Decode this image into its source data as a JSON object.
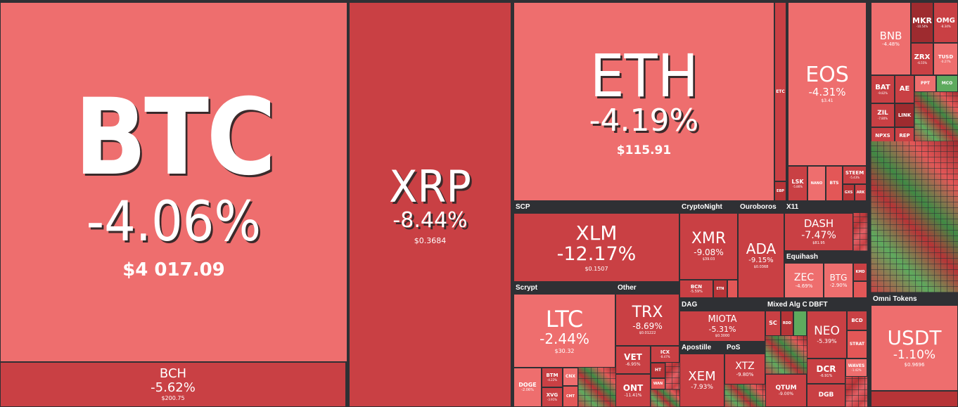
{
  "sectors": {
    "scp": "SCP",
    "cryptonight": "CryptoNight",
    "ouroboros": "Ouroboros",
    "x11": "X11",
    "equihash": "Equihash",
    "scrypt": "Scrypt",
    "other": "Other",
    "dag": "DAG",
    "mixed": "Mixed Alg C...",
    "dbft": "DBFT",
    "apostille": "Apostille",
    "pos": "PoS",
    "omni": "Omni Tokens"
  },
  "coins": {
    "btc": {
      "symbol": "BTC",
      "change": "-4.06%",
      "price": "$4 017.09"
    },
    "bch": {
      "symbol": "BCH",
      "change": "-5.62%",
      "price": "$200.75"
    },
    "xrp": {
      "symbol": "XRP",
      "change": "-8.44%",
      "price": "$0.3684"
    },
    "eth": {
      "symbol": "ETH",
      "change": "-4.19%",
      "price": "$115.91"
    },
    "etc": {
      "symbol": "ETC"
    },
    "ebp": {
      "symbol": "EBP"
    },
    "eos": {
      "symbol": "EOS",
      "change": "-4.31%",
      "price": "$3.41"
    },
    "lsk": {
      "symbol": "LSK",
      "change": "-5.86%"
    },
    "nano": {
      "symbol": "NANO"
    },
    "bts": {
      "symbol": "BTS"
    },
    "steem": {
      "symbol": "STEEM",
      "change": "-5.43%"
    },
    "gxs": {
      "symbol": "GXS"
    },
    "ark": {
      "symbol": "ARK"
    },
    "xlm": {
      "symbol": "XLM",
      "change": "-12.17%",
      "price": "$0.1507"
    },
    "xmr": {
      "symbol": "XMR",
      "change": "-9.08%",
      "price": "$39.03"
    },
    "bcn": {
      "symbol": "BCN",
      "change": "-5.59%"
    },
    "etn": {
      "symbol": "ETN"
    },
    "ada": {
      "symbol": "ADA",
      "change": "-9.15%",
      "price": "$0.0368"
    },
    "dash": {
      "symbol": "DASH",
      "change": "-7.47%",
      "price": "$81.95"
    },
    "zec": {
      "symbol": "ZEC",
      "change": "-4.69%"
    },
    "btg": {
      "symbol": "BTG",
      "change": "-2.90%"
    },
    "kmd": {
      "symbol": "KMD"
    },
    "ltc": {
      "symbol": "LTC",
      "change": "-2.44%",
      "price": "$30.32"
    },
    "doge": {
      "symbol": "DOGE",
      "change": "-2.06%"
    },
    "btm": {
      "symbol": "BTM",
      "change": "-4.22%"
    },
    "xvg": {
      "symbol": "XVG",
      "change": "-3.91%"
    },
    "cnx": {
      "symbol": "CNX"
    },
    "cmt": {
      "symbol": "CMT"
    },
    "trx": {
      "symbol": "TRX",
      "change": "-8.69%",
      "price": "$0.01222"
    },
    "vet": {
      "symbol": "VET",
      "change": "-6.95%"
    },
    "icx": {
      "symbol": "ICX",
      "change": "-8.47%"
    },
    "ht": {
      "symbol": "HT"
    },
    "ont": {
      "symbol": "ONT",
      "change": "-11.41%"
    },
    "wan": {
      "symbol": "WAN"
    },
    "miota": {
      "symbol": "MIOTA",
      "change": "-5.31%",
      "price": "$0.3000"
    },
    "sc": {
      "symbol": "SC"
    },
    "rdd": {
      "symbol": "RDD"
    },
    "neo": {
      "symbol": "NEO",
      "change": "-5.39%"
    },
    "bcd": {
      "symbol": "BCD"
    },
    "strat": {
      "symbol": "STRAT"
    },
    "dcr": {
      "symbol": "DCR",
      "change": "-6.91%"
    },
    "waves": {
      "symbol": "WAVES",
      "change": "-1.42%"
    },
    "xem": {
      "symbol": "XEM",
      "change": "-7.93%"
    },
    "xtz": {
      "symbol": "XTZ",
      "change": "-9.80%"
    },
    "qtum": {
      "symbol": "QTUM",
      "change": "-9.00%"
    },
    "dgb": {
      "symbol": "DGB"
    },
    "bnb": {
      "symbol": "BNB",
      "change": "-4.48%"
    },
    "mkr": {
      "symbol": "MKR",
      "change": "-10.54%"
    },
    "omg": {
      "symbol": "OMG",
      "change": "-8.34%"
    },
    "zrx": {
      "symbol": "ZRX",
      "change": "-6.55%"
    },
    "tusd": {
      "symbol": "TUSD",
      "change": "-0.27%"
    },
    "bat": {
      "symbol": "BAT",
      "change": "-9.82%"
    },
    "ae": {
      "symbol": "AE"
    },
    "ppt": {
      "symbol": "PPT"
    },
    "mco": {
      "symbol": "MCO"
    },
    "zil": {
      "symbol": "ZIL",
      "change": "-7.80%"
    },
    "link": {
      "symbol": "LINK"
    },
    "npxs": {
      "symbol": "NPXS"
    },
    "rep": {
      "symbol": "REP"
    },
    "usdt": {
      "symbol": "USDT",
      "change": "-1.10%",
      "price": "$0.9696"
    }
  }
}
